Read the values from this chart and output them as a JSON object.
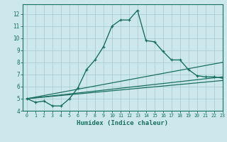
{
  "xlabel": "Humidex (Indice chaleur)",
  "background_color": "#cce8ec",
  "grid_color": "#aacdd4",
  "line_color": "#1a7060",
  "xlim": [
    -0.5,
    23
  ],
  "ylim": [
    4,
    12.8
  ],
  "xticks": [
    0,
    1,
    2,
    3,
    4,
    5,
    6,
    7,
    8,
    9,
    10,
    11,
    12,
    13,
    14,
    15,
    16,
    17,
    18,
    19,
    20,
    21,
    22,
    23
  ],
  "yticks": [
    4,
    5,
    6,
    7,
    8,
    9,
    10,
    11,
    12
  ],
  "series": [
    {
      "x": [
        0,
        1,
        2,
        3,
        4,
        5,
        6,
        7,
        8,
        9,
        10,
        11,
        12,
        13,
        14,
        15,
        16,
        17,
        18,
        19,
        20,
        21,
        22,
        23
      ],
      "y": [
        5.0,
        4.7,
        4.8,
        4.4,
        4.4,
        5.0,
        5.9,
        7.4,
        8.2,
        9.3,
        11.0,
        11.5,
        11.5,
        12.3,
        9.8,
        9.7,
        8.9,
        8.2,
        8.2,
        7.4,
        6.9,
        6.8,
        6.8,
        6.7
      ],
      "marker": "+",
      "linewidth": 1.0,
      "markersize": 3.5
    },
    {
      "x": [
        0,
        23
      ],
      "y": [
        5.0,
        8.0
      ],
      "marker": null,
      "linewidth": 0.9
    },
    {
      "x": [
        0,
        23
      ],
      "y": [
        5.0,
        6.8
      ],
      "marker": null,
      "linewidth": 0.9
    },
    {
      "x": [
        0,
        23
      ],
      "y": [
        5.0,
        6.5
      ],
      "marker": null,
      "linewidth": 0.9
    }
  ]
}
